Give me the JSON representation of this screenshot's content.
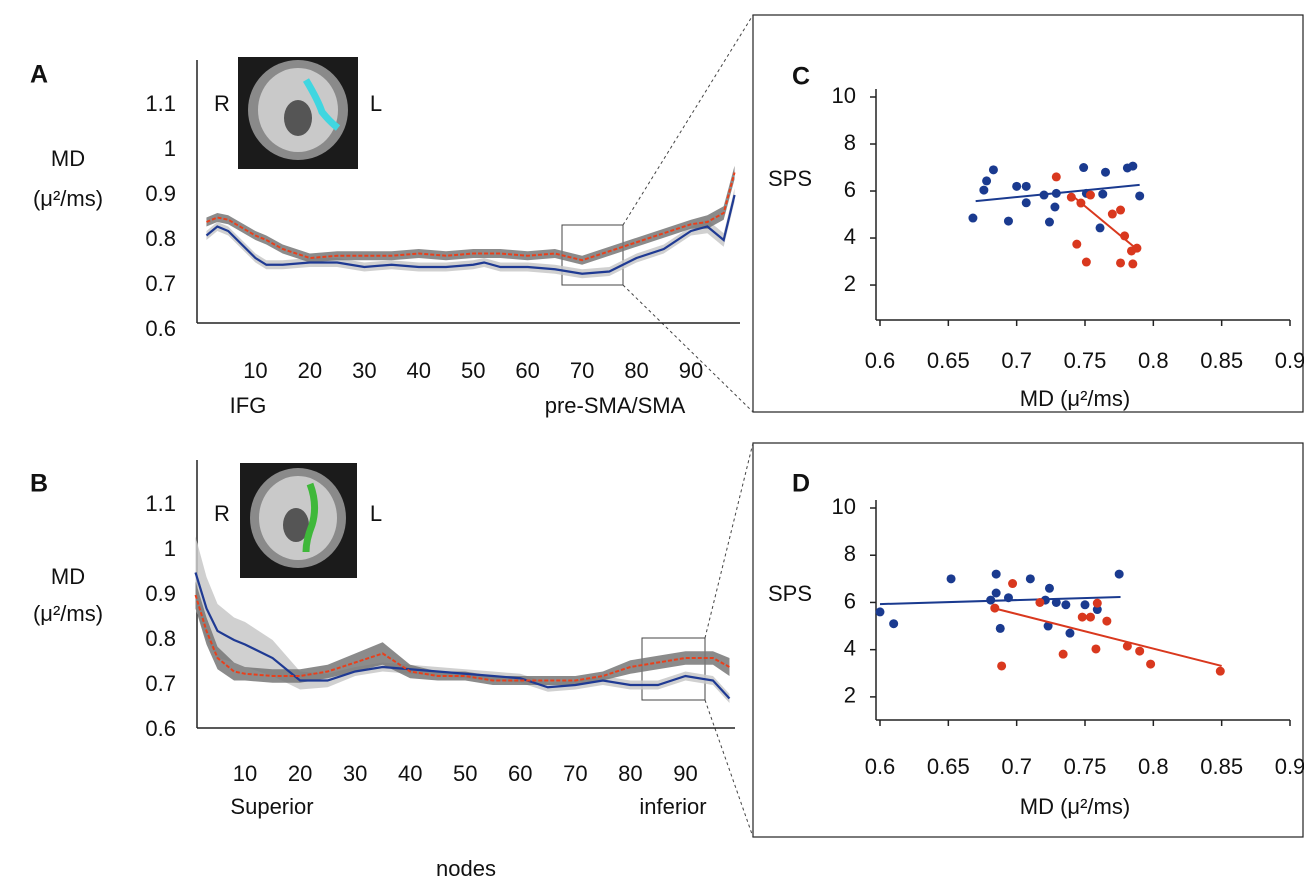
{
  "chart_data": [
    {
      "type": "line",
      "panel": "A",
      "y_label": [
        "MD",
        "(μ²/ms)"
      ],
      "x_annotations": [
        "IFG",
        "pre-SMA/SMA"
      ],
      "image_labels": [
        "R",
        "L"
      ],
      "x": [
        1,
        3,
        5,
        10,
        12,
        15,
        20,
        25,
        30,
        35,
        40,
        45,
        50,
        52,
        55,
        60,
        65,
        70,
        75,
        80,
        85,
        90,
        93,
        96,
        98
      ],
      "series": [
        {
          "color": "#1f3a93",
          "band_color": "#c8c8c8",
          "dashed": false,
          "values": [
            0.81,
            0.83,
            0.82,
            0.76,
            0.745,
            0.745,
            0.75,
            0.75,
            0.74,
            0.745,
            0.74,
            0.74,
            0.745,
            0.75,
            0.74,
            0.74,
            0.735,
            0.725,
            0.73,
            0.76,
            0.78,
            0.82,
            0.83,
            0.8,
            0.9
          ],
          "errors": [
            0.01,
            0.01,
            0.01,
            0.01,
            0.01,
            0.01,
            0.01,
            0.01,
            0.01,
            0.01,
            0.01,
            0.01,
            0.01,
            0.01,
            0.01,
            0.01,
            0.01,
            0.01,
            0.01,
            0.01,
            0.01,
            0.01,
            0.015,
            0.015,
            0.015
          ]
        },
        {
          "color": "#e8401c",
          "band_color": "#777777",
          "dashed": true,
          "values": [
            0.84,
            0.85,
            0.845,
            0.81,
            0.8,
            0.78,
            0.76,
            0.765,
            0.765,
            0.765,
            0.77,
            0.765,
            0.77,
            0.77,
            0.77,
            0.765,
            0.77,
            0.755,
            0.775,
            0.795,
            0.815,
            0.835,
            0.84,
            0.86,
            0.95
          ],
          "errors": [
            0.01,
            0.01,
            0.01,
            0.01,
            0.01,
            0.01,
            0.01,
            0.01,
            0.01,
            0.01,
            0.01,
            0.01,
            0.01,
            0.01,
            0.01,
            0.01,
            0.01,
            0.01,
            0.01,
            0.01,
            0.01,
            0.01,
            0.015,
            0.015,
            0.015
          ]
        }
      ],
      "xlim": [
        0,
        99
      ],
      "xticks": [
        10,
        20,
        30,
        40,
        50,
        60,
        70,
        80,
        90
      ],
      "ylim": [
        0.6,
        1.2
      ],
      "yticks": [
        0.6,
        0.7,
        0.8,
        0.9,
        1,
        1.1
      ]
    },
    {
      "type": "line",
      "panel": "B",
      "y_label": [
        "MD",
        "(μ²/ms)"
      ],
      "x_annotations": [
        "Superior",
        "inferior"
      ],
      "image_labels": [
        "R",
        "L"
      ],
      "x_label": "nodes",
      "x": [
        1,
        3,
        5,
        8,
        10,
        15,
        20,
        25,
        30,
        35,
        40,
        45,
        50,
        55,
        60,
        65,
        70,
        75,
        80,
        85,
        90,
        95,
        98
      ],
      "series": [
        {
          "color": "#1f3a93",
          "band_color": "#c8c8c8",
          "dashed": false,
          "values": [
            0.95,
            0.87,
            0.82,
            0.8,
            0.79,
            0.76,
            0.71,
            0.71,
            0.73,
            0.74,
            0.735,
            0.73,
            0.725,
            0.72,
            0.715,
            0.695,
            0.7,
            0.71,
            0.7,
            0.7,
            0.72,
            0.71,
            0.67
          ],
          "errors": [
            0.08,
            0.07,
            0.06,
            0.05,
            0.05,
            0.04,
            0.02,
            0.015,
            0.01,
            0.01,
            0.01,
            0.01,
            0.01,
            0.01,
            0.01,
            0.01,
            0.01,
            0.01,
            0.01,
            0.01,
            0.01,
            0.01,
            0.01
          ]
        },
        {
          "color": "#e8401c",
          "band_color": "#777777",
          "dashed": true,
          "values": [
            0.9,
            0.82,
            0.76,
            0.73,
            0.725,
            0.72,
            0.72,
            0.73,
            0.75,
            0.77,
            0.73,
            0.72,
            0.72,
            0.71,
            0.71,
            0.71,
            0.71,
            0.72,
            0.74,
            0.75,
            0.76,
            0.76,
            0.74
          ],
          "errors": [
            0.03,
            0.03,
            0.025,
            0.02,
            0.015,
            0.015,
            0.015,
            0.015,
            0.02,
            0.025,
            0.015,
            0.01,
            0.01,
            0.01,
            0.01,
            0.01,
            0.01,
            0.01,
            0.015,
            0.015,
            0.015,
            0.015,
            0.02
          ]
        }
      ],
      "xlim": [
        0,
        99
      ],
      "xticks": [
        10,
        20,
        30,
        40,
        50,
        60,
        70,
        80,
        90
      ],
      "ylim": [
        0.6,
        1.2
      ],
      "yticks": [
        0.6,
        0.7,
        0.8,
        0.9,
        1,
        1.1
      ]
    },
    {
      "type": "scatter",
      "panel": "C",
      "x_label": "MD (μ²/ms)",
      "y_label": "SPS",
      "series": [
        {
          "color": "#1a3a8f",
          "x": [
            0.668,
            0.676,
            0.678,
            0.683,
            0.694,
            0.7,
            0.707,
            0.707,
            0.72,
            0.724,
            0.728,
            0.729,
            0.749,
            0.751,
            0.765,
            0.763,
            0.761,
            0.781,
            0.785,
            0.79
          ],
          "values": [
            4.85,
            6.04,
            6.43,
            6.9,
            4.72,
            6.2,
            6.2,
            5.5,
            5.83,
            4.68,
            5.32,
            5.9,
            7.0,
            5.9,
            6.8,
            5.87,
            4.43,
            6.98,
            7.06,
            5.79
          ],
          "fit": {
            "x": [
              0.67,
              0.79
            ],
            "y": [
              5.57,
              6.26
            ]
          }
        },
        {
          "color": "#d9381e",
          "x": [
            0.729,
            0.74,
            0.747,
            0.754,
            0.744,
            0.751,
            0.77,
            0.776,
            0.779,
            0.784,
            0.788,
            0.785,
            0.776
          ],
          "values": [
            6.6,
            5.74,
            5.49,
            5.83,
            3.74,
            2.98,
            5.02,
            5.19,
            4.09,
            3.45,
            3.57,
            2.9,
            2.94
          ],
          "fit": {
            "x": [
              0.741,
              0.787
            ],
            "y": [
              5.79,
              3.57
            ]
          }
        }
      ],
      "xlim": [
        0.6,
        0.9
      ],
      "xticks": [
        0.6,
        0.65,
        0.7,
        0.75,
        0.8,
        0.85,
        0.9
      ],
      "ylim": [
        0.5,
        10
      ],
      "yticks": [
        2,
        4,
        6,
        8,
        10
      ]
    },
    {
      "type": "scatter",
      "panel": "D",
      "x_label": "MD (μ²/ms)",
      "y_label": "SPS",
      "series": [
        {
          "color": "#1a3a8f",
          "x": [
            0.6,
            0.61,
            0.652,
            0.685,
            0.681,
            0.685,
            0.688,
            0.694,
            0.71,
            0.721,
            0.724,
            0.729,
            0.723,
            0.736,
            0.739,
            0.75,
            0.759,
            0.775
          ],
          "values": [
            5.6,
            5.1,
            7.0,
            7.2,
            6.1,
            6.4,
            4.9,
            6.2,
            7.0,
            6.1,
            6.6,
            6.0,
            5.0,
            5.9,
            4.7,
            5.9,
            5.7,
            7.2
          ],
          "fit": {
            "x": [
              0.6,
              0.776
            ],
            "y": [
              5.93,
              6.23
            ]
          }
        },
        {
          "color": "#d9381e",
          "x": [
            0.684,
            0.697,
            0.717,
            0.734,
            0.748,
            0.754,
            0.759,
            0.758,
            0.766,
            0.781,
            0.79,
            0.798,
            0.849,
            0.689
          ],
          "values": [
            5.76,
            6.8,
            6.0,
            3.81,
            5.38,
            5.38,
            5.97,
            4.03,
            5.21,
            4.15,
            3.94,
            3.39,
            3.09,
            3.31
          ],
          "fit": {
            "x": [
              0.683,
              0.85
            ],
            "y": [
              5.76,
              3.31
            ]
          }
        }
      ],
      "xlim": [
        0.6,
        0.9
      ],
      "xticks": [
        0.6,
        0.65,
        0.7,
        0.75,
        0.8,
        0.85,
        0.9
      ],
      "ylim": [
        1,
        10
      ],
      "yticks": [
        2,
        4,
        6,
        8,
        10
      ]
    }
  ]
}
